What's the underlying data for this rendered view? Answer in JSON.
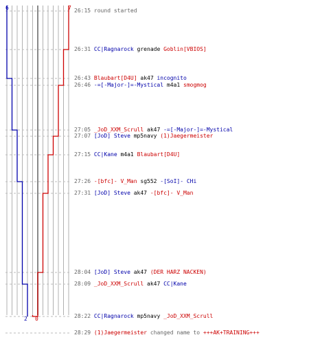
{
  "scores": {
    "blue_start": "6",
    "red_start": "7",
    "blue_end": "2",
    "red_end": "0"
  },
  "colors": {
    "blue": "#0000aa",
    "red": "#cc0000",
    "grid": "#b0b0b0",
    "mid": "#888888"
  },
  "events": [
    {
      "time": "26:15",
      "type": "info",
      "text": "round started"
    },
    {
      "time": "26:31",
      "killer": "CC|Ragnarock",
      "killer_team": "blue",
      "weapon": "grenade",
      "victim": "Goblin[VBIOS]",
      "victim_team": "red"
    },
    {
      "time": "26:43",
      "killer": "Blaubart[D4U]",
      "killer_team": "red",
      "weapon": "ak47",
      "victim": "incognito",
      "victim_team": "blue"
    },
    {
      "time": "26:46",
      "killer": "-=[-Major-]=-Mystical",
      "killer_team": "blue",
      "weapon": "m4a1",
      "victim": "smogmog",
      "victim_team": "red"
    },
    {
      "time": "27:05",
      "killer": "_JoD_XXM_Scrull",
      "killer_team": "red",
      "weapon": "ak47",
      "victim": "-=[-Major-]=-Mystical",
      "victim_team": "blue"
    },
    {
      "time": "27:07",
      "killer": "[JoD] Steve",
      "killer_team": "blue",
      "weapon": "mp5navy",
      "victim": "(1)Jaegermeister",
      "victim_team": "red"
    },
    {
      "time": "27:15",
      "killer": "CC|Kane",
      "killer_team": "blue",
      "weapon": "m4a1",
      "victim": "Blaubart[D4U]",
      "victim_team": "red"
    },
    {
      "time": "27:26",
      "killer": "-[bfc]- V_Man",
      "killer_team": "red",
      "weapon": "sg552",
      "victim": "-[SoI]- CHi",
      "victim_team": "blue"
    },
    {
      "time": "27:31",
      "killer": "[JoD] Steve",
      "killer_team": "blue",
      "weapon": "ak47",
      "victim": "-[bfc]- V_Man",
      "victim_team": "red"
    },
    {
      "time": "28:04",
      "killer": "[JoD] Steve",
      "killer_team": "blue",
      "weapon": "ak47",
      "victim": "(DER HARZ NACKEN)",
      "victim_team": "red"
    },
    {
      "time": "28:09",
      "killer": "_JoD_XXM_Scrull",
      "killer_team": "red",
      "weapon": "ak47",
      "victim": "CC|Kane",
      "victim_team": "blue"
    },
    {
      "time": "28:22",
      "killer": "CC|Ragnarock",
      "killer_team": "blue",
      "weapon": "mp5navy",
      "victim": "_JoD_XXM_Scrull",
      "victim_team": "red"
    },
    {
      "time": "28:29",
      "type": "namechange",
      "player": "(1)Jaegermeister",
      "player_team": "red",
      "action": "changed name to",
      "new_name": "+++AK+TRAINING+++"
    }
  ],
  "chart_data": {
    "type": "line",
    "x": [
      "26:15",
      "26:31",
      "26:43",
      "26:46",
      "27:05",
      "27:07",
      "27:15",
      "27:26",
      "27:31",
      "28:04",
      "28:09",
      "28:22"
    ],
    "series": [
      {
        "values": [
          6,
          6,
          5,
          5,
          4,
          4,
          4,
          3,
          3,
          3,
          2,
          2
        ]
      },
      {
        "values": [
          7,
          6,
          6,
          5,
          5,
          4,
          3,
          3,
          2,
          1,
          1,
          0
        ]
      }
    ]
  }
}
